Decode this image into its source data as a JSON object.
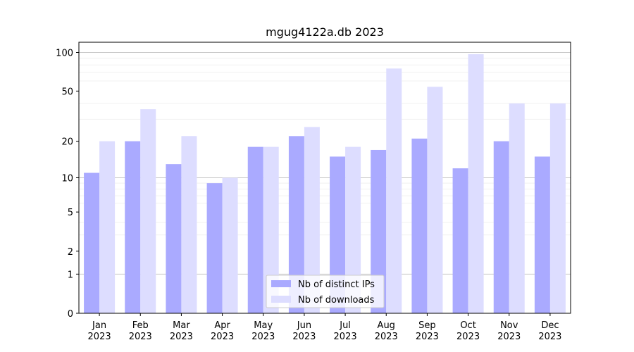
{
  "chart_data": {
    "type": "bar",
    "title": "mgug4122a.db 2023",
    "xlabel": "",
    "ylabel": "",
    "scale": "log(1+y)",
    "ylim": [
      0,
      120
    ],
    "yticks": [
      0,
      1,
      2,
      5,
      10,
      20,
      50,
      100
    ],
    "categories": [
      "Jan\n2023",
      "Feb\n2023",
      "Mar\n2023",
      "Apr\n2023",
      "May\n2023",
      "Jun\n2023",
      "Jul\n2023",
      "Aug\n2023",
      "Sep\n2023",
      "Oct\n2023",
      "Nov\n2023",
      "Dec\n2023"
    ],
    "series": [
      {
        "name": "Nb of distinct IPs",
        "color": "#aaaaff",
        "values": [
          11,
          20,
          13,
          9,
          18,
          22,
          15,
          17,
          21,
          12,
          20,
          15
        ]
      },
      {
        "name": "Nb of downloads",
        "color": "#ddddff",
        "values": [
          20,
          36,
          22,
          10,
          18,
          26,
          18,
          75,
          54,
          97,
          40,
          40
        ]
      }
    ],
    "grid": true,
    "legend_position": "bottom-center"
  }
}
